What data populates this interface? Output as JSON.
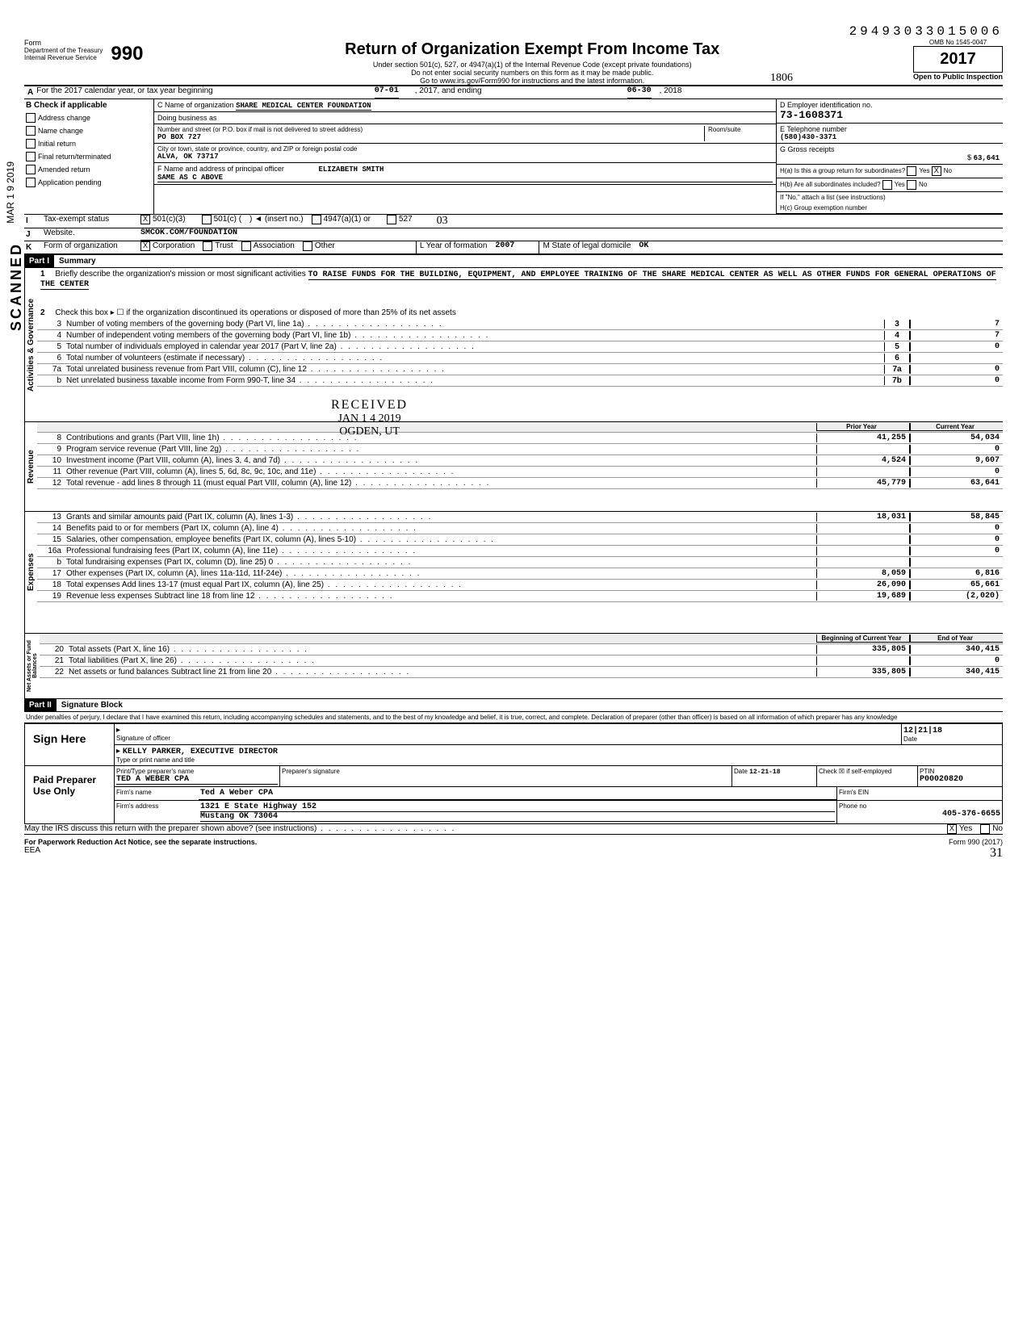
{
  "topStamp": "29493033015006",
  "omb": "OMB No 1545-0047",
  "formNum": "990",
  "formTitle": "Return of Organization Exempt From Income Tax",
  "formSub1": "Under section 501(c), 527, or 4947(a)(1) of the Internal Revenue Code (except private foundations)",
  "formSub2": "Do not enter social security numbers on this form as it may be made public.",
  "formSub3": "Go to www.irs.gov/Form990 for instructions and the latest information.",
  "year": "2017",
  "dept1": "Department of the Treasury",
  "dept2": "Internal Revenue Service",
  "openPublic": "Open to Public Inspection",
  "handwrittenNum": "1806",
  "lineA": "For the 2017 calendar year, or tax year beginning",
  "taxBegin": "07-01",
  "taxBeginYear": ", 2017, and ending",
  "taxEnd": "06-30",
  "taxEndYear": ", 2018",
  "checkB": {
    "label": "Check if applicable",
    "items": [
      "Address change",
      "Name change",
      "Initial return",
      "Final return/terminated",
      "Amended return",
      "Application pending"
    ]
  },
  "orgC": {
    "nameLabel": "C Name of organization",
    "name": "SHARE MEDICAL CENTER FOUNDATION",
    "dbaLabel": "Doing business as",
    "streetLabel": "Number and street (or P.O. box if mail is not delivered to street address)",
    "street": "PO BOX 727",
    "roomLabel": "Room/suite",
    "cityLabel": "City or town, state or province, country, and ZIP or foreign postal code",
    "city": "ALVA, OK 73717",
    "principalLabel": "F Name and address of principal officer",
    "principal": "ELIZABETH SMITH",
    "sameAs": "SAME AS C ABOVE"
  },
  "rightD": {
    "einLabel": "D Employer identification no.",
    "ein": "73-1608371",
    "phoneLabel": "E Telephone number",
    "phone": "(580)430-3371",
    "grossLabel": "G Gross receipts",
    "gross": "63,641",
    "haLabel": "H(a) Is this a group return for subordinates?",
    "hbLabel": "H(b) Are all subordinates included?",
    "hcLabel": "H(c) Group exemption number",
    "attachNote": "If \"No,\" attach a list (see instructions)"
  },
  "taxExempt": {
    "label": "Tax-exempt status",
    "opt1": "501(c)(3)",
    "opt2": "501(c) (",
    "insert": "(insert no.)",
    "opt3": "4947(a)(1) or",
    "opt4": "527",
    "hand": "03"
  },
  "website": {
    "label": "Website.",
    "value": "SMCOK.COM/FOUNDATION"
  },
  "formOrg": {
    "label": "Form of organization",
    "opts": [
      "Corporation",
      "Trust",
      "Association",
      "Other"
    ],
    "yearLabel": "L Year of formation",
    "year": "2007",
    "stateLabel": "M State of legal domicile",
    "state": "OK"
  },
  "part1": {
    "header": "Part I",
    "title": "Summary",
    "line1Label": "Briefly describe the organization's mission or most significant activities",
    "mission": "TO RAISE FUNDS FOR THE BUILDING, EQUIPMENT, AND EMPLOYEE TRAINING OF THE SHARE MEDICAL CENTER AS WELL AS OTHER FUNDS FOR GENERAL OPERATIONS OF THE CENTER",
    "line2": "Check this box ▸ ☐ if the organization discontinued its operations or disposed of more than 25% of its net assets",
    "lines": [
      {
        "num": "3",
        "text": "Number of voting members of the governing body (Part VI, line 1a)",
        "box": "3",
        "val": "7"
      },
      {
        "num": "4",
        "text": "Number of independent voting members of the governing body (Part VI, line 1b)",
        "box": "4",
        "val": "7"
      },
      {
        "num": "5",
        "text": "Total number of individuals employed in calendar year 2017 (Part V, line 2a)",
        "box": "5",
        "val": "0"
      },
      {
        "num": "6",
        "text": "Total number of volunteers (estimate if necessary)",
        "box": "6",
        "val": ""
      },
      {
        "num": "7a",
        "text": "Total unrelated business revenue from Part VIII, column (C), line 12",
        "box": "7a",
        "val": "0"
      },
      {
        "num": "b",
        "text": "Net unrelated business taxable income from Form 990-T, line 34",
        "box": "7b",
        "val": "0"
      }
    ],
    "priorLabel": "Prior Year",
    "currentLabel": "Current Year",
    "revenue": [
      {
        "num": "8",
        "text": "Contributions and grants (Part VIII, line 1h)",
        "prior": "41,255",
        "current": "54,034"
      },
      {
        "num": "9",
        "text": "Program service revenue (Part VIII, line 2g)",
        "prior": "",
        "current": "0"
      },
      {
        "num": "10",
        "text": "Investment income (Part VIII, column (A), lines 3, 4, and 7d)",
        "prior": "4,524",
        "current": "9,607"
      },
      {
        "num": "11",
        "text": "Other revenue (Part VIII, column (A), lines 5, 6d, 8c, 9c, 10c, and 11e)",
        "prior": "",
        "current": "0"
      },
      {
        "num": "12",
        "text": "Total revenue - add lines 8 through 11 (must equal Part VIII, column (A), line 12)",
        "prior": "45,779",
        "current": "63,641"
      }
    ],
    "expenses": [
      {
        "num": "13",
        "text": "Grants and similar amounts paid (Part IX, column (A), lines 1-3)",
        "prior": "18,031",
        "current": "58,845"
      },
      {
        "num": "14",
        "text": "Benefits paid to or for members (Part IX, column (A), line 4)",
        "prior": "",
        "current": "0"
      },
      {
        "num": "15",
        "text": "Salaries, other compensation, employee benefits (Part IX, column (A), lines 5-10)",
        "prior": "",
        "current": "0"
      },
      {
        "num": "16a",
        "text": "Professional fundraising fees (Part IX, column (A), line 11e)",
        "prior": "",
        "current": "0"
      },
      {
        "num": "b",
        "text": "Total fundraising expenses (Part IX, column (D), line 25)          0",
        "prior": "",
        "current": ""
      },
      {
        "num": "17",
        "text": "Other expenses (Part IX, column (A), lines 11a-11d, 11f-24e)",
        "prior": "8,059",
        "current": "6,816"
      },
      {
        "num": "18",
        "text": "Total expenses Add lines 13-17 (must equal Part IX, column (A), line 25)",
        "prior": "26,090",
        "current": "65,661"
      },
      {
        "num": "19",
        "text": "Revenue less expenses Subtract line 18 from line 12",
        "prior": "19,689",
        "current": "(2,020)"
      }
    ],
    "beginLabel": "Beginning of Current Year",
    "endLabel": "End of Year",
    "netassets": [
      {
        "num": "20",
        "text": "Total assets (Part X, line 16)",
        "prior": "335,805",
        "current": "340,415"
      },
      {
        "num": "21",
        "text": "Total liabilities (Part X, line 26)",
        "prior": "",
        "current": "0"
      },
      {
        "num": "22",
        "text": "Net assets or fund balances Subtract line 21 from line 20",
        "prior": "335,805",
        "current": "340,415"
      }
    ]
  },
  "vertLabels": {
    "gov": "Activities & Governance",
    "rev": "Revenue",
    "exp": "Expenses",
    "net": "Net Assets or Fund Balances"
  },
  "sideStamp": "SCANNED",
  "dateStamp": "MAR 1 9 2019",
  "received": {
    "label": "RECEIVED",
    "date": "JAN 1 4 2019",
    "loc": "OGDEN, UT"
  },
  "part2": {
    "header": "Part II",
    "title": "Signature Block",
    "perjury": "Under penalties of perjury, I declare that I have examined this return, including accompanying schedules and statements, and to the best of my knowledge and belief, it is true, correct, and complete. Declaration of preparer (other than officer) is based on all information of which preparer has any knowledge"
  },
  "sign": {
    "hereLabel": "Sign Here",
    "sigLabel": "Signature of officer",
    "dateLabel": "Date",
    "date": "12|21|18",
    "officer": "KELLY PARKER, EXECUTIVE DIRECTOR",
    "typeLabel": "Type or print name and title"
  },
  "paid": {
    "label": "Paid Preparer Use Only",
    "prepNameLabel": "Print/Type preparer's name",
    "prepName": "TED A WEBER CPA",
    "prepSigLabel": "Preparer's signature",
    "prepDate": "12-21-18",
    "checkLabel": "Check ☒ if self-employed",
    "ptinLabel": "PTIN",
    "ptin": "P00020820",
    "firmNameLabel": "Firm's name",
    "firmName": "Ted A Weber CPA",
    "firmEinLabel": "Firm's EIN",
    "firmAddrLabel": "Firm's address",
    "firmAddr1": "1321 E State Highway 152",
    "firmAddr2": "Mustang OK 73064",
    "phoneLabel": "Phone no",
    "phone": "405-376-6655"
  },
  "discuss": "May the IRS discuss this return with the preparer shown above? (see instructions)",
  "paperwork": "For Paperwork Reduction Act Notice, see the separate instructions.",
  "formFooter": "Form 990 (2017)",
  "eea": "EEA",
  "pageHand": "31",
  "yesNo": {
    "yes": "Yes",
    "no": "No"
  }
}
